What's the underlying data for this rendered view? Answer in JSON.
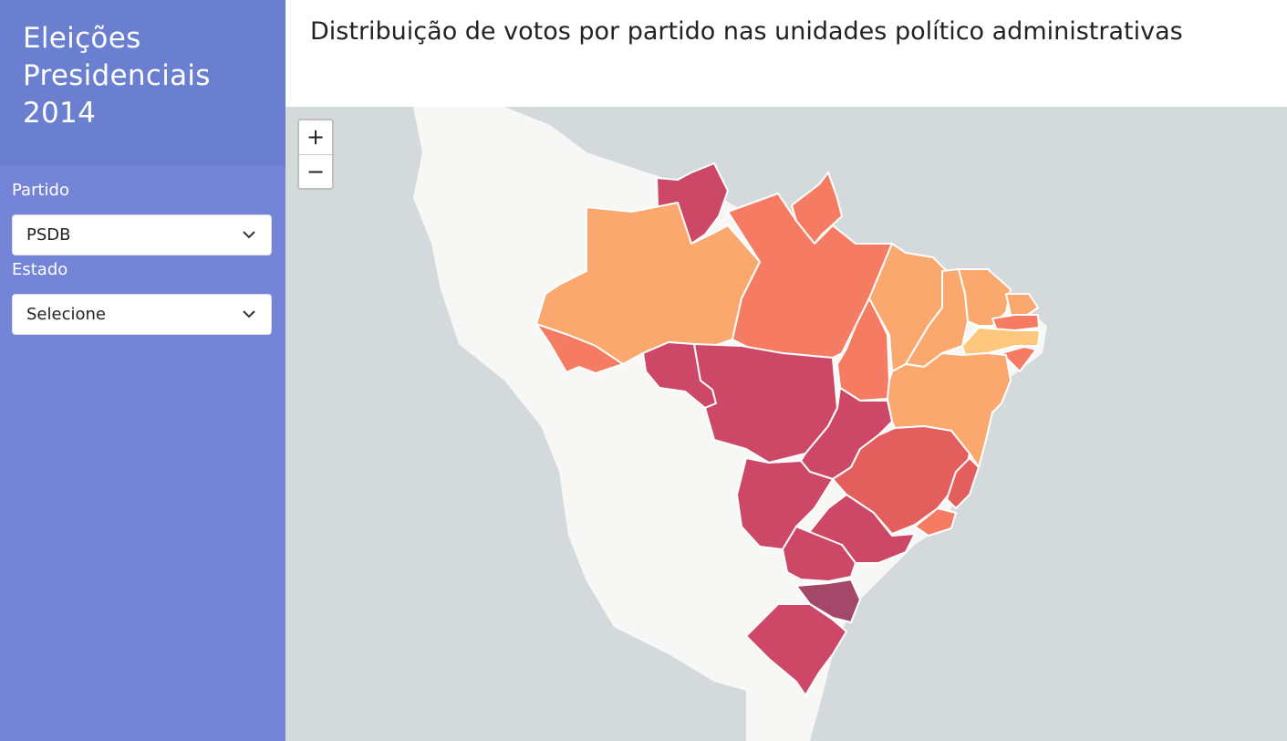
{
  "sidebar": {
    "title_line1": "Eleições",
    "title_line2": "Presidenciais",
    "title_line3": "2014",
    "party_label": "Partido",
    "party_value": "PSDB",
    "state_label": "Estado",
    "state_value": "Selecione"
  },
  "main": {
    "title": "Distribuição de votos por partido nas unidades político administrativas"
  },
  "map": {
    "zoom_in_label": "+",
    "zoom_out_label": "−",
    "colors": {
      "ocean": "#d4dadc",
      "land": "#f7f7f6",
      "darkest": "#a4486a",
      "dark": "#cd4867",
      "mid": "#e35f5d",
      "orange_red": "#f57c62",
      "orange": "#fba86f",
      "light": "#fec77e",
      "border": "#ffffff"
    }
  }
}
